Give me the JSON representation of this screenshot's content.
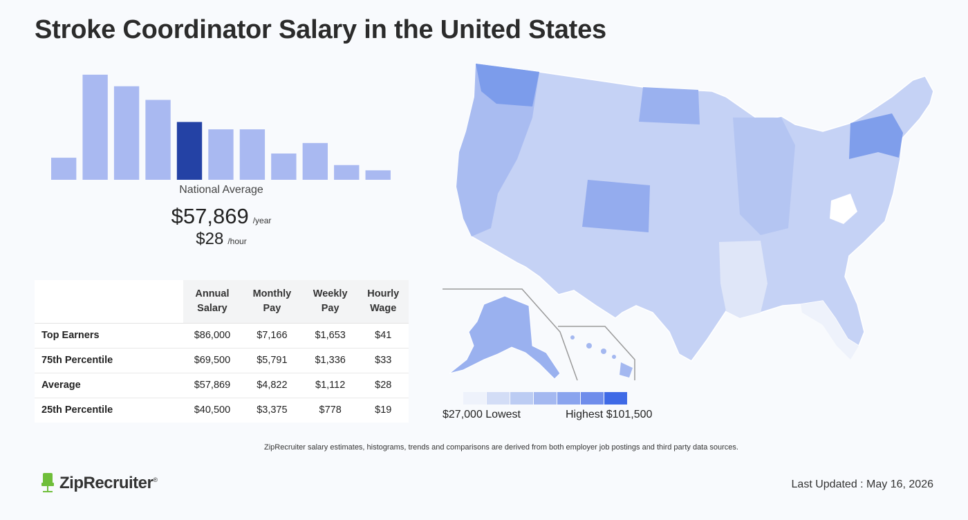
{
  "page": {
    "title": "Stroke Coordinator Salary in the United States"
  },
  "histogram": {
    "values": [
      0.21,
      1.0,
      0.89,
      0.76,
      0.55,
      0.48,
      0.48,
      0.25,
      0.35,
      0.14,
      0.09
    ],
    "highlight_index": 4,
    "bar_color": "#a9b9f1",
    "highlight_color": "#2442a5"
  },
  "average": {
    "label": "National Average",
    "annual": "$57,869",
    "annual_unit": "/year",
    "hourly": "$28",
    "hourly_unit": "/hour"
  },
  "table": {
    "headers": [
      {
        "line1": "Annual",
        "line2": "Salary"
      },
      {
        "line1": "Monthly",
        "line2": "Pay"
      },
      {
        "line1": "Weekly",
        "line2": "Pay"
      },
      {
        "line1": "Hourly",
        "line2": "Wage"
      }
    ],
    "rows": [
      {
        "label": "Top Earners",
        "annual": "$86,000",
        "monthly": "$7,166",
        "weekly": "$1,653",
        "hourly": "$41"
      },
      {
        "label": "75th Percentile",
        "annual": "$69,500",
        "monthly": "$5,791",
        "weekly": "$1,336",
        "hourly": "$33"
      },
      {
        "label": "Average",
        "annual": "$57,869",
        "monthly": "$4,822",
        "weekly": "$1,112",
        "hourly": "$28"
      },
      {
        "label": "25th Percentile",
        "annual": "$40,500",
        "monthly": "$3,375",
        "weekly": "$778",
        "hourly": "$19"
      }
    ]
  },
  "map": {
    "legend_colors": [
      "#eef2fb",
      "#d3ddf6",
      "#bcccf3",
      "#a4b8f0",
      "#8aa4ee",
      "#6f8deb",
      "#3f6ae6"
    ],
    "legend_low": "$27,000 Lowest",
    "legend_high": "Highest $101,500"
  },
  "footer": {
    "disclaimer": "ZipRecruiter salary estimates, histograms, trends and comparisons are derived from both employer job postings and third party data sources.",
    "logo_text": "ZipRecruiter",
    "last_updated": "Last Updated : May 16, 2026"
  }
}
